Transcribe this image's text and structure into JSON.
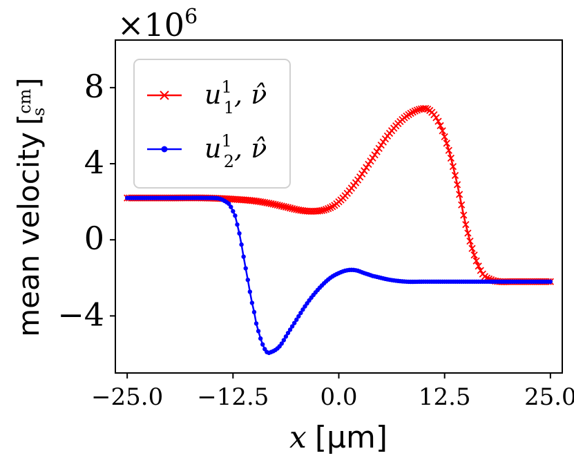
{
  "chart_data": {
    "type": "line",
    "multiplier": "×10",
    "multiplier_exp": "6",
    "xlabel": {
      "var": "x",
      "unit": "[μm]"
    },
    "ylabel": {
      "text": "mean velocity",
      "unit_num": "cm",
      "unit_den": "s"
    },
    "xlim": [
      -26.4,
      26.4
    ],
    "ylim": [
      -7.0,
      10.5
    ],
    "xticks": [
      -25.0,
      -12.5,
      0.0,
      12.5,
      25.0
    ],
    "xtick_labels": [
      "−25.0",
      "−12.5",
      "0.0",
      "12.5",
      "25.0"
    ],
    "yticks": [
      8,
      4,
      0,
      -4
    ],
    "ytick_labels": [
      "8",
      "4",
      "0",
      "−4"
    ],
    "grid": false,
    "legend_position": "top-left",
    "series": [
      {
        "name": "u_1^1, ν̂",
        "label_parts": {
          "base": "u",
          "sub": "1",
          "sup": "1",
          "rest": ", ν̂"
        },
        "color": "#ff0000",
        "marker": "x",
        "x": [
          -25,
          -20,
          -16,
          -13,
          -10,
          -8,
          -6,
          -4.5,
          -3,
          -1.5,
          0,
          2,
          4,
          6,
          8,
          10,
          11,
          12,
          13,
          14,
          15,
          16,
          17,
          18,
          19,
          20,
          22,
          25
        ],
        "y": [
          2.2,
          2.2,
          2.2,
          2.15,
          2.05,
          1.9,
          1.7,
          1.55,
          1.5,
          1.6,
          2.0,
          3.0,
          4.3,
          5.6,
          6.5,
          6.9,
          6.7,
          6.0,
          4.7,
          2.9,
          0.8,
          -0.8,
          -1.8,
          -2.1,
          -2.2,
          -2.2,
          -2.2,
          -2.2
        ]
      },
      {
        "name": "u_2^1, ν̂",
        "label_parts": {
          "base": "u",
          "sub": "2",
          "sup": "1",
          "rest": ", ν̂"
        },
        "color": "#0000ff",
        "marker": "dot",
        "x": [
          -25,
          -20,
          -15,
          -14,
          -13,
          -12.5,
          -12,
          -11,
          -10,
          -9.5,
          -9,
          -8.5,
          -8,
          -7,
          -6,
          -5,
          -4,
          -3,
          -2,
          -1,
          0,
          1,
          2,
          3,
          4,
          6,
          8,
          10,
          15,
          20,
          25
        ],
        "y": [
          2.2,
          2.2,
          2.2,
          2.15,
          1.9,
          1.5,
          0.8,
          -1.5,
          -3.8,
          -4.8,
          -5.5,
          -5.9,
          -5.9,
          -5.6,
          -4.9,
          -4.2,
          -3.5,
          -2.9,
          -2.4,
          -2.0,
          -1.75,
          -1.6,
          -1.6,
          -1.75,
          -1.9,
          -2.1,
          -2.2,
          -2.2,
          -2.2,
          -2.2,
          -2.2
        ]
      }
    ]
  }
}
